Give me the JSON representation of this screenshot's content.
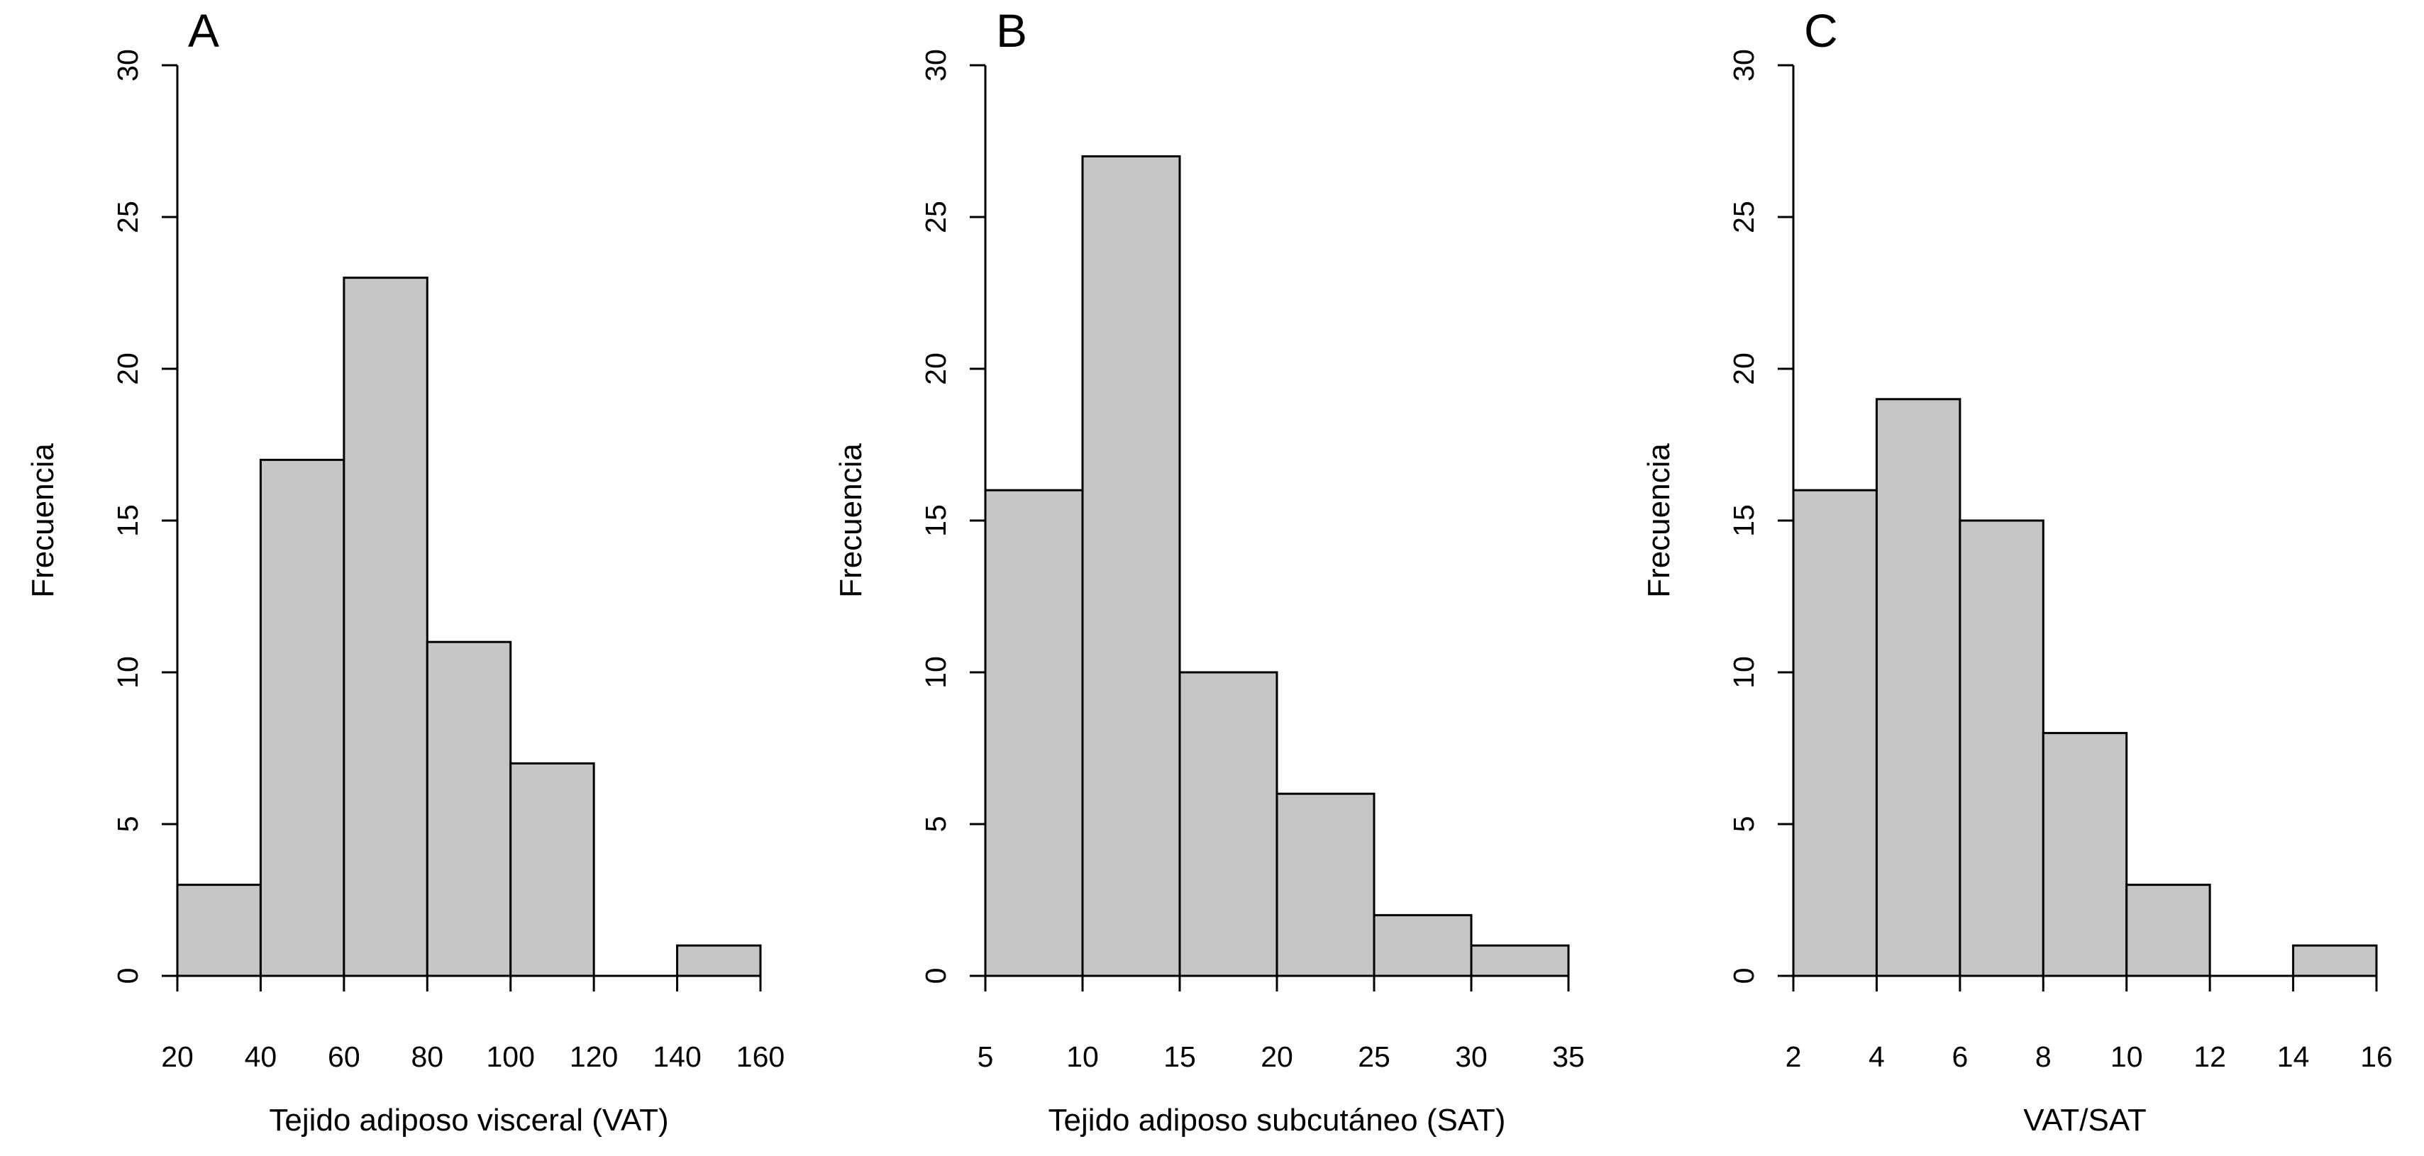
{
  "figure": {
    "background": "#ffffff",
    "bar_fill": "#c6c6c6",
    "bar_stroke": "#000000",
    "axis_color": "#000000",
    "text_color": "#000000"
  },
  "chart_data": [
    {
      "type": "bar",
      "panel_label": "A",
      "xlabel": "Tejido adiposo visceral (VAT)",
      "ylabel": "Frecuencia",
      "xlim": [
        20,
        160
      ],
      "ylim": [
        0,
        30
      ],
      "x_ticks": [
        20,
        40,
        60,
        80,
        100,
        120,
        140,
        160
      ],
      "y_ticks": [
        0,
        5,
        10,
        15,
        20,
        25,
        30
      ],
      "bin_start": 20,
      "bin_width": 20,
      "values": [
        3,
        17,
        23,
        11,
        7,
        0,
        1
      ],
      "legend": "none",
      "grid": "off"
    },
    {
      "type": "bar",
      "panel_label": "B",
      "xlabel": "Tejido adiposo subcutáneo (SAT)",
      "ylabel": "Frecuencia",
      "xlim": [
        5,
        35
      ],
      "ylim": [
        0,
        30
      ],
      "x_ticks": [
        5,
        10,
        15,
        20,
        25,
        30,
        35
      ],
      "y_ticks": [
        0,
        5,
        10,
        15,
        20,
        25,
        30
      ],
      "bin_start": 5,
      "bin_width": 5,
      "values": [
        16,
        27,
        10,
        6,
        2,
        1
      ],
      "legend": "none",
      "grid": "off"
    },
    {
      "type": "bar",
      "panel_label": "C",
      "xlabel": "VAT/SAT",
      "ylabel": "Frecuencia",
      "xlim": [
        2,
        16
      ],
      "ylim": [
        0,
        30
      ],
      "x_ticks": [
        2,
        4,
        6,
        8,
        10,
        12,
        14,
        16
      ],
      "y_ticks": [
        0,
        5,
        10,
        15,
        20,
        25,
        30
      ],
      "bin_start": 2,
      "bin_width": 2,
      "values": [
        16,
        19,
        15,
        8,
        3,
        0,
        1
      ],
      "legend": "none",
      "grid": "off"
    }
  ]
}
